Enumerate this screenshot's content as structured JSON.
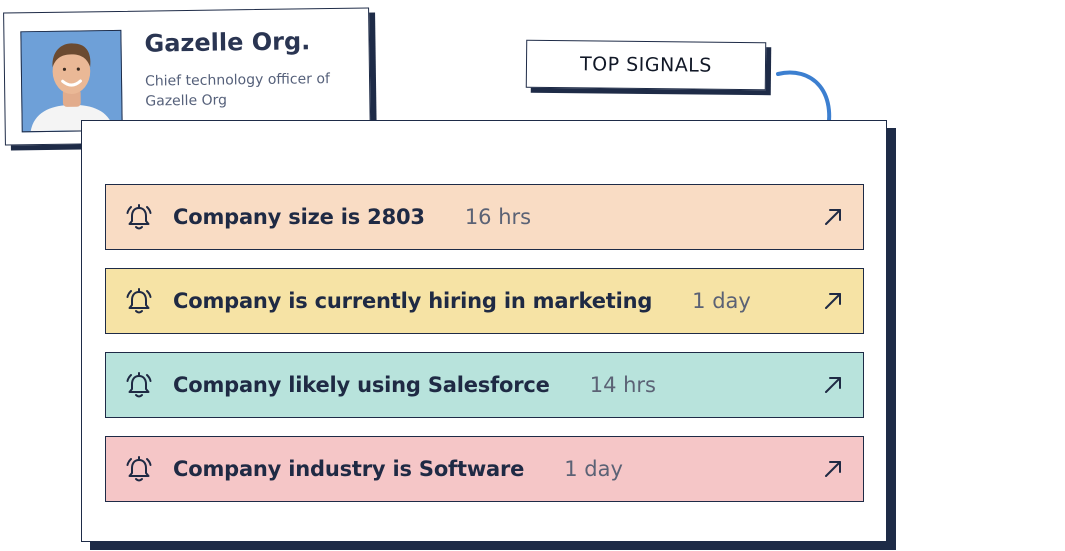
{
  "profile": {
    "org_name": "Gazelle Org.",
    "role": "Chief technology officer of Gazelle Org",
    "avatar_icon": "person-photo"
  },
  "label": {
    "text": "TOP SIGNALS"
  },
  "colors": {
    "outline": "#1e2b47",
    "row_peach": "#f9dcc4",
    "row_yellow": "#f6e3a5",
    "row_teal": "#b8e3dc",
    "row_pink": "#f5c6c7",
    "arrow_blue": "#3c7fd0"
  },
  "signals": [
    {
      "text": "Company size is 2803",
      "time": "16 hrs",
      "color": "#f9dcc4",
      "icon": "bell-icon"
    },
    {
      "text": "Company is currently hiring in marketing",
      "time": "1 day",
      "color": "#f6e3a5",
      "icon": "bell-icon"
    },
    {
      "text": "Company likely using Salesforce",
      "time": "14 hrs",
      "color": "#b8e3dc",
      "icon": "bell-icon"
    },
    {
      "text": "Company industry is Software",
      "time": "1 day",
      "color": "#f5c6c7",
      "icon": "bell-icon"
    }
  ]
}
